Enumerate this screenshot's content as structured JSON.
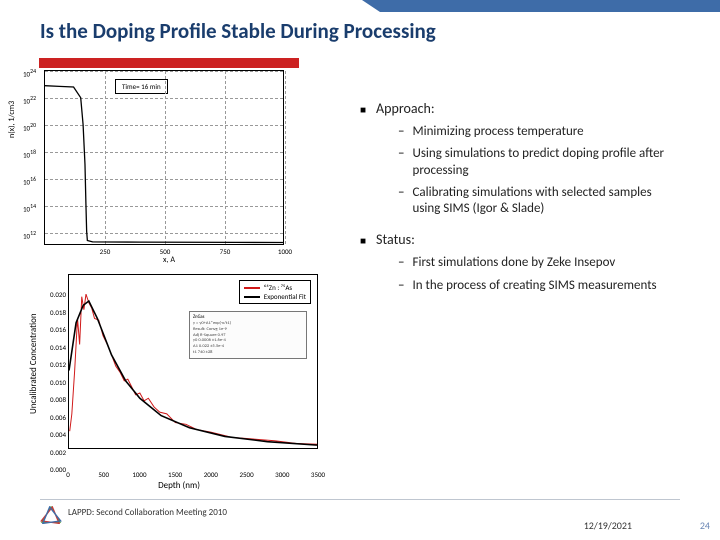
{
  "title": "Is the Doping Profile Stable During Processing",
  "chart1": {
    "type": "line-log",
    "legend": "Time=   16 min",
    "xlabel": "x, A",
    "ylabel": "n(x), 1/cm3",
    "background": "#ffffff",
    "line_color": "#000000",
    "grid_color": "#999999",
    "ylim_log10": [
      11,
      24
    ],
    "xlim": [
      0,
      1000
    ],
    "xticks": [
      250,
      500,
      750,
      1000
    ],
    "yticks_log10": [
      12,
      14,
      16,
      18,
      20,
      22,
      24
    ],
    "points": [
      [
        0,
        22.9
      ],
      [
        60,
        22.85
      ],
      [
        120,
        22.8
      ],
      [
        150,
        22
      ],
      [
        160,
        20
      ],
      [
        168,
        17
      ],
      [
        172,
        14
      ],
      [
        175,
        12
      ],
      [
        178,
        11.3
      ],
      [
        200,
        11.2
      ],
      [
        400,
        11.18
      ],
      [
        600,
        11.17
      ],
      [
        800,
        11.16
      ],
      [
        1000,
        11.15
      ]
    ]
  },
  "chart2": {
    "type": "line",
    "xlabel": "Depth (nm)",
    "ylabel": "Uncalibrated Concentration",
    "background": "#ffffff",
    "series": [
      {
        "name": "⁶⁴Zn : ⁷⁵As",
        "color": "#d01818",
        "width": 1.2
      },
      {
        "name": "Exponential Fit",
        "color": "#000000",
        "width": 1.6
      }
    ],
    "ylim": [
      0,
      0.02
    ],
    "xlim": [
      0,
      3500
    ],
    "xticks": [
      0,
      500,
      1000,
      1500,
      2000,
      2500,
      3000,
      3500
    ],
    "yticks": [
      0.0,
      0.002,
      0.004,
      0.006,
      0.008,
      0.01,
      0.012,
      0.014,
      0.016,
      0.018,
      0.02
    ],
    "fit_points": [
      [
        0,
        0.009
      ],
      [
        100,
        0.0145
      ],
      [
        200,
        0.0165
      ],
      [
        280,
        0.017
      ],
      [
        400,
        0.015
      ],
      [
        600,
        0.0108
      ],
      [
        800,
        0.0078
      ],
      [
        1000,
        0.0058
      ],
      [
        1300,
        0.0038
      ],
      [
        1700,
        0.0024
      ],
      [
        2200,
        0.0014
      ],
      [
        2800,
        0.0008
      ],
      [
        3500,
        0.0004
      ]
    ],
    "data_points": [
      [
        10,
        0.002
      ],
      [
        40,
        0.004
      ],
      [
        80,
        0.009
      ],
      [
        120,
        0.015
      ],
      [
        150,
        0.012
      ],
      [
        180,
        0.0175
      ],
      [
        210,
        0.016
      ],
      [
        240,
        0.0178
      ],
      [
        280,
        0.0168
      ],
      [
        320,
        0.0162
      ],
      [
        360,
        0.015
      ],
      [
        420,
        0.0148
      ],
      [
        480,
        0.013
      ],
      [
        540,
        0.012
      ],
      [
        600,
        0.0108
      ],
      [
        660,
        0.0095
      ],
      [
        720,
        0.0088
      ],
      [
        780,
        0.0078
      ],
      [
        830,
        0.008
      ],
      [
        880,
        0.0072
      ],
      [
        940,
        0.0062
      ],
      [
        1000,
        0.0064
      ],
      [
        1060,
        0.0055
      ],
      [
        1120,
        0.0058
      ],
      [
        1200,
        0.0048
      ],
      [
        1280,
        0.0042
      ],
      [
        1380,
        0.004
      ],
      [
        1500,
        0.003
      ],
      [
        1650,
        0.0028
      ],
      [
        1800,
        0.0022
      ],
      [
        2000,
        0.0019
      ],
      [
        2300,
        0.0013
      ],
      [
        2600,
        0.0011
      ],
      [
        2900,
        0.0009
      ],
      [
        3200,
        0.0006
      ],
      [
        3500,
        0.0005
      ]
    ],
    "inset": {
      "title": "ZnGas",
      "lines": [
        "y = y0+A1*exp(-x/t1)",
        "Result: Convg 1e-9",
        "Adj R-Square 0.97",
        "y0  0.0006  ±1.6e-4",
        "A1  0.022  ±5.5e-4",
        "t1  740   ±28"
      ]
    }
  },
  "bullets": {
    "approach": {
      "label": "Approach:",
      "items": [
        "Minimizing process temperature",
        "Using simulations to predict doping profile after processing",
        "Calibrating simulations with selected samples using SIMS (Igor & Slade)"
      ]
    },
    "status": {
      "label": "Status:",
      "items": [
        "First simulations done by Zeke Insepov",
        "In the process of creating SIMS measurements"
      ]
    }
  },
  "footer": {
    "text": "LAPPD: Second Collaboration Meeting 2010",
    "date": "12/19/2021",
    "page": "24"
  }
}
